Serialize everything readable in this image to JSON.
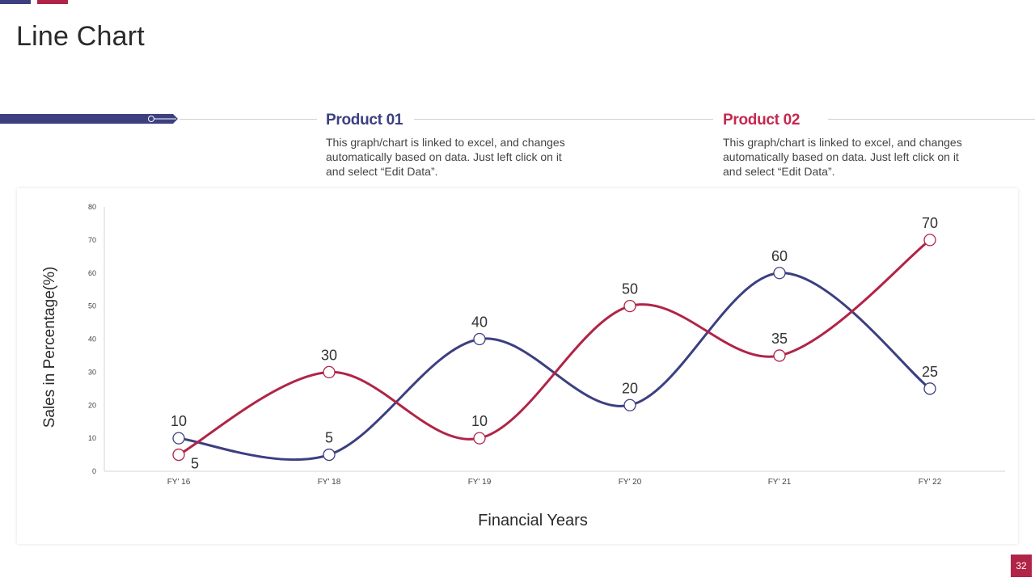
{
  "slide": {
    "title": "Line Chart",
    "page_number": "32",
    "accent_colors": [
      "#3c3f80",
      "#b12447"
    ]
  },
  "products": [
    {
      "name": "Product 01",
      "description": "This graph/chart is linked to excel, and changes automatically based on data. Just left click on it and select “Edit Data”.",
      "color": "#3c3f80"
    },
    {
      "name": "Product 02",
      "description": "This graph/chart is linked to excel, and changes automatically based on data. Just left click on it and select “Edit Data”.",
      "color": "#c5294f"
    }
  ],
  "chart_data": {
    "type": "line",
    "smooth": true,
    "title": "",
    "categories": [
      "FY' 16",
      "FY' 18",
      "FY' 19",
      "FY' 20",
      "FY' 21",
      "FY' 22"
    ],
    "series": [
      {
        "name": "Product 01",
        "color": "#3c3f80",
        "values": [
          10,
          5,
          40,
          20,
          60,
          25
        ]
      },
      {
        "name": "Product 02",
        "color": "#b12447",
        "values": [
          5,
          30,
          10,
          50,
          35,
          70
        ]
      }
    ],
    "xlabel": "Financial Years",
    "ylabel": "Sales in Percentage(%)",
    "ylim": [
      0,
      80
    ],
    "yticks": [
      0,
      10,
      20,
      30,
      40,
      50,
      60,
      70,
      80
    ],
    "grid": false,
    "legend": "none",
    "data_labels": true
  }
}
